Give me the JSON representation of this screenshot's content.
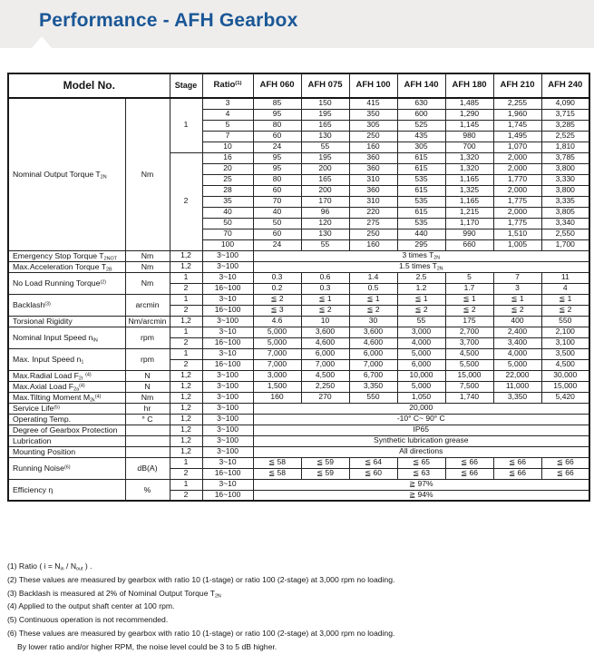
{
  "page": {
    "title": "Performance - AFH Gearbox",
    "accent_color": "#1a5796",
    "band_color": "#eeedec"
  },
  "table": {
    "header": {
      "model_no": "Model No.",
      "stage": "Stage",
      "ratio": "Ratio",
      "ratio_note": "(1)",
      "models": [
        "AFH 060",
        "AFH 075",
        "AFH 100",
        "AFH 140",
        "AFH 180",
        "AFH 210",
        "AFH 240"
      ]
    },
    "groups": [
      {
        "label": [
          "Nominal Output Torque T",
          {
            "sub": "2N"
          }
        ],
        "unit": "Nm",
        "stages": [
          {
            "stage": "1",
            "rows": [
              {
                "ratio": "3",
                "values": [
                  "85",
                  "150",
                  "415",
                  "630",
                  "1,485",
                  "2,255",
                  "4,090"
                ]
              },
              {
                "ratio": "4",
                "values": [
                  "95",
                  "195",
                  "350",
                  "600",
                  "1,290",
                  "1,960",
                  "3,715"
                ]
              },
              {
                "ratio": "5",
                "values": [
                  "80",
                  "165",
                  "305",
                  "525",
                  "1,145",
                  "1,745",
                  "3,285"
                ]
              },
              {
                "ratio": "7",
                "values": [
                  "60",
                  "130",
                  "250",
                  "435",
                  "980",
                  "1,495",
                  "2,525"
                ]
              },
              {
                "ratio": "10",
                "values": [
                  "24",
                  "55",
                  "160",
                  "305",
                  "700",
                  "1,070",
                  "1,810"
                ]
              }
            ]
          },
          {
            "stage": "2",
            "rows": [
              {
                "ratio": "16",
                "values": [
                  "95",
                  "195",
                  "360",
                  "615",
                  "1,320",
                  "2,000",
                  "3,785"
                ]
              },
              {
                "ratio": "20",
                "values": [
                  "95",
                  "200",
                  "360",
                  "615",
                  "1,320",
                  "2,000",
                  "3,800"
                ]
              },
              {
                "ratio": "25",
                "values": [
                  "80",
                  "165",
                  "310",
                  "535",
                  "1,165",
                  "1,770",
                  "3,330"
                ]
              },
              {
                "ratio": "28",
                "values": [
                  "60",
                  "200",
                  "360",
                  "615",
                  "1,325",
                  "2,000",
                  "3,800"
                ]
              },
              {
                "ratio": "35",
                "values": [
                  "70",
                  "170",
                  "310",
                  "535",
                  "1,165",
                  "1,775",
                  "3,335"
                ]
              },
              {
                "ratio": "40",
                "values": [
                  "40",
                  "96",
                  "220",
                  "615",
                  "1,215",
                  "2,000",
                  "3,805"
                ]
              },
              {
                "ratio": "50",
                "values": [
                  "50",
                  "120",
                  "275",
                  "535",
                  "1,170",
                  "1,775",
                  "3,340"
                ]
              },
              {
                "ratio": "70",
                "values": [
                  "60",
                  "130",
                  "250",
                  "440",
                  "990",
                  "1,510",
                  "2,550"
                ]
              },
              {
                "ratio": "100",
                "values": [
                  "24",
                  "55",
                  "160",
                  "295",
                  "660",
                  "1,005",
                  "1,700"
                ]
              }
            ]
          }
        ]
      },
      {
        "label": [
          "Emergency Stop Torque T",
          {
            "sub": "2NOT"
          }
        ],
        "unit": "Nm",
        "stages": [
          {
            "stage": "1,2",
            "rows": [
              {
                "ratio": "3~100",
                "span": [
                  "3 times T",
                  {
                    "sub": "2N"
                  }
                ]
              }
            ]
          }
        ]
      },
      {
        "label": [
          "Max.Acceleration Torque T",
          {
            "sub": "2B"
          }
        ],
        "unit": "Nm",
        "stages": [
          {
            "stage": "1,2",
            "rows": [
              {
                "ratio": "3~100",
                "span": [
                  "1.5 times T",
                  {
                    "sub": "2N"
                  }
                ]
              }
            ]
          }
        ]
      },
      {
        "label": [
          "No Load Running Torque",
          {
            "sup": "(2)"
          }
        ],
        "unit": "Nm",
        "stages": [
          {
            "stage": "1",
            "rows": [
              {
                "ratio": "3~10",
                "values": [
                  "0.3",
                  "0.6",
                  "1.4",
                  "2.5",
                  "5",
                  "7",
                  "11"
                ]
              }
            ]
          },
          {
            "stage": "2",
            "rows": [
              {
                "ratio": "16~100",
                "values": [
                  "0.2",
                  "0.3",
                  "0.5",
                  "1.2",
                  "1.7",
                  "3",
                  "4"
                ]
              }
            ]
          }
        ]
      },
      {
        "label": [
          "Backlash",
          {
            "sup": "(3)"
          }
        ],
        "unit": "arcmin",
        "stages": [
          {
            "stage": "1",
            "rows": [
              {
                "ratio": "3~10",
                "values": [
                  "≦ 2",
                  "≦ 1",
                  "≦ 1",
                  "≦ 1",
                  "≦ 1",
                  "≦ 1",
                  "≦ 1"
                ]
              }
            ]
          },
          {
            "stage": "2",
            "rows": [
              {
                "ratio": "16~100",
                "values": [
                  "≦ 3",
                  "≦ 2",
                  "≦ 2",
                  "≦ 2",
                  "≦ 2",
                  "≦ 2",
                  "≦ 2"
                ]
              }
            ]
          }
        ]
      },
      {
        "label": [
          "Torsional Rigidity"
        ],
        "unit": "Nm/arcmin",
        "stages": [
          {
            "stage": "1,2",
            "rows": [
              {
                "ratio": "3~100",
                "values": [
                  "4.6",
                  "10",
                  "30",
                  "55",
                  "175",
                  "400",
                  "550"
                ]
              }
            ]
          }
        ]
      },
      {
        "label": [
          "Nominal Input Speed n",
          {
            "sub": "IN"
          }
        ],
        "unit": "rpm",
        "stages": [
          {
            "stage": "1",
            "rows": [
              {
                "ratio": "3~10",
                "values": [
                  "5,000",
                  "3,600",
                  "3,600",
                  "3,000",
                  "2,700",
                  "2,400",
                  "2,100"
                ]
              }
            ]
          },
          {
            "stage": "2",
            "rows": [
              {
                "ratio": "16~100",
                "values": [
                  "5,000",
                  "4,600",
                  "4,600",
                  "4,000",
                  "3,700",
                  "3,400",
                  "3,100"
                ]
              }
            ]
          }
        ]
      },
      {
        "label": [
          "Max. Input Speed n",
          {
            "sub": "1"
          }
        ],
        "unit": "rpm",
        "stages": [
          {
            "stage": "1",
            "rows": [
              {
                "ratio": "3~10",
                "values": [
                  "7,000",
                  "6,000",
                  "6,000",
                  "5,000",
                  "4,500",
                  "4,000",
                  "3,500"
                ]
              }
            ]
          },
          {
            "stage": "2",
            "rows": [
              {
                "ratio": "16~100",
                "values": [
                  "7,000",
                  "7,000",
                  "7,000",
                  "6,000",
                  "5,500",
                  "5,000",
                  "4,500"
                ]
              }
            ]
          }
        ]
      },
      {
        "label": [
          "Max.Radial Load F",
          {
            "sub": "2r"
          },
          " ",
          {
            "sup": "(4)"
          }
        ],
        "unit": "N",
        "stages": [
          {
            "stage": "1,2",
            "rows": [
              {
                "ratio": "3~100",
                "values": [
                  "3,000",
                  "4,500",
                  "6,700",
                  "10,000",
                  "15,000",
                  "22,000",
                  "30,000"
                ]
              }
            ]
          }
        ]
      },
      {
        "label": [
          "Max.Axial Load F",
          {
            "sub": "2a"
          },
          {
            "sup": "(4)"
          }
        ],
        "unit": "N",
        "stages": [
          {
            "stage": "1,2",
            "rows": [
              {
                "ratio": "3~100",
                "values": [
                  "1,500",
                  "2,250",
                  "3,350",
                  "5,000",
                  "7,500",
                  "11,000",
                  "15,000"
                ]
              }
            ]
          }
        ]
      },
      {
        "label": [
          "Max.Tilting Moment  M",
          {
            "sub": "2k"
          },
          {
            "sup": "(4)"
          }
        ],
        "unit": "Nm",
        "stages": [
          {
            "stage": "1,2",
            "rows": [
              {
                "ratio": "3~100",
                "values": [
                  "160",
                  "270",
                  "550",
                  "1,050",
                  "1,740",
                  "3,350",
                  "5,420"
                ]
              }
            ]
          }
        ]
      },
      {
        "label": [
          "Service Life",
          {
            "sup": "(5)"
          }
        ],
        "unit": "hr",
        "stages": [
          {
            "stage": "1,2",
            "rows": [
              {
                "ratio": "3~100",
                "span": [
                  "20,000"
                ]
              }
            ]
          }
        ]
      },
      {
        "label": [
          "Operating Temp."
        ],
        "unit": "° C",
        "stages": [
          {
            "stage": "1,2",
            "rows": [
              {
                "ratio": "3~100",
                "span": [
                  "-10° C~ 90° C"
                ]
              }
            ]
          }
        ]
      },
      {
        "label": [
          "Degree of Gearbox  Protection"
        ],
        "unit": "",
        "stages": [
          {
            "stage": "1,2",
            "rows": [
              {
                "ratio": "3~100",
                "span": [
                  "IP65"
                ]
              }
            ]
          }
        ]
      },
      {
        "label": [
          "Lubrication"
        ],
        "unit": "",
        "stages": [
          {
            "stage": "1,2",
            "rows": [
              {
                "ratio": "3~100",
                "span": [
                  "Synthetic lubrication grease"
                ]
              }
            ]
          }
        ]
      },
      {
        "label": [
          "Mounting Position"
        ],
        "unit": "",
        "stages": [
          {
            "stage": "1,2",
            "rows": [
              {
                "ratio": "3~100",
                "span": [
                  "All directions"
                ]
              }
            ]
          }
        ]
      },
      {
        "label": [
          "Running Noise",
          {
            "sup": "(6)"
          }
        ],
        "unit": "dB(A)",
        "stages": [
          {
            "stage": "1",
            "rows": [
              {
                "ratio": "3~10",
                "values": [
                  "≦ 58",
                  "≦ 59",
                  "≦ 64",
                  "≦ 65",
                  "≦ 66",
                  "≦ 66",
                  "≦ 66"
                ]
              }
            ]
          },
          {
            "stage": "2",
            "rows": [
              {
                "ratio": "16~100",
                "values": [
                  "≦ 58",
                  "≦ 59",
                  "≦ 60",
                  "≦ 63",
                  "≦ 66",
                  "≦ 66",
                  "≦ 66"
                ]
              }
            ]
          }
        ]
      },
      {
        "label": [
          "Efficiency η"
        ],
        "unit": "%",
        "stages": [
          {
            "stage": "1",
            "rows": [
              {
                "ratio": "3~10",
                "span": [
                  "≧ 97%"
                ]
              }
            ]
          },
          {
            "stage": "2",
            "rows": [
              {
                "ratio": "16~100",
                "span": [
                  "≧ 94%"
                ]
              }
            ]
          }
        ]
      }
    ],
    "footnotes": [
      {
        "indent": false,
        "segs": [
          "(1) Ratio ( i = N",
          {
            "sub": "in"
          },
          " / N",
          {
            "sub": "out"
          },
          " ) ."
        ]
      },
      {
        "indent": false,
        "segs": [
          "(2) These values are measured by gearbox with ratio 10 (1-stage) or ratio 100 (2-stage) at 3,000 rpm no loading."
        ]
      },
      {
        "indent": false,
        "segs": [
          "(3) Backlash is measured at 2% of Nominal Output Torque T",
          {
            "sub": "2N"
          }
        ]
      },
      {
        "indent": false,
        "segs": [
          "(4) Applied to the output shaft center at 100 rpm."
        ]
      },
      {
        "indent": false,
        "segs": [
          "(5) Continuous operation is not recommended."
        ]
      },
      {
        "indent": false,
        "segs": [
          "(6) These values are measured by gearbox with ratio 10 (1-stage) or ratio 100 (2-stage) at 3,000 rpm no loading."
        ]
      },
      {
        "indent": true,
        "segs": [
          "By lower ratio and/or higher RPM, the noise level could be 3 to 5 dB  higher."
        ]
      }
    ]
  }
}
